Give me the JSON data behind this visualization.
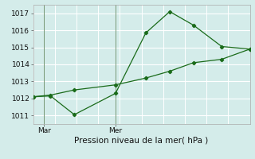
{
  "title": "Pression niveau de la mer( hPa )",
  "bg_color": "#d4ecea",
  "grid_color": "#ffffff",
  "line_color": "#1a6b1a",
  "ylim": [
    1010.5,
    1017.5
  ],
  "yticks": [
    1011,
    1012,
    1013,
    1014,
    1015,
    1016,
    1017
  ],
  "xtick_labels": [
    "Mar",
    "Mer"
  ],
  "xtick_positions": [
    0.05,
    0.38
  ],
  "line1_x": [
    0.0,
    0.08,
    0.19,
    0.38,
    0.52,
    0.63,
    0.74,
    0.87,
    1.0
  ],
  "line1_y": [
    1012.1,
    1012.15,
    1011.05,
    1012.3,
    1015.85,
    1017.1,
    1016.3,
    1015.05,
    1014.9
  ],
  "line2_x": [
    0.0,
    0.08,
    0.19,
    0.38,
    0.52,
    0.63,
    0.74,
    0.87,
    1.0
  ],
  "line2_y": [
    1012.1,
    1012.2,
    1012.5,
    1012.8,
    1013.2,
    1013.6,
    1014.1,
    1014.3,
    1014.9
  ]
}
